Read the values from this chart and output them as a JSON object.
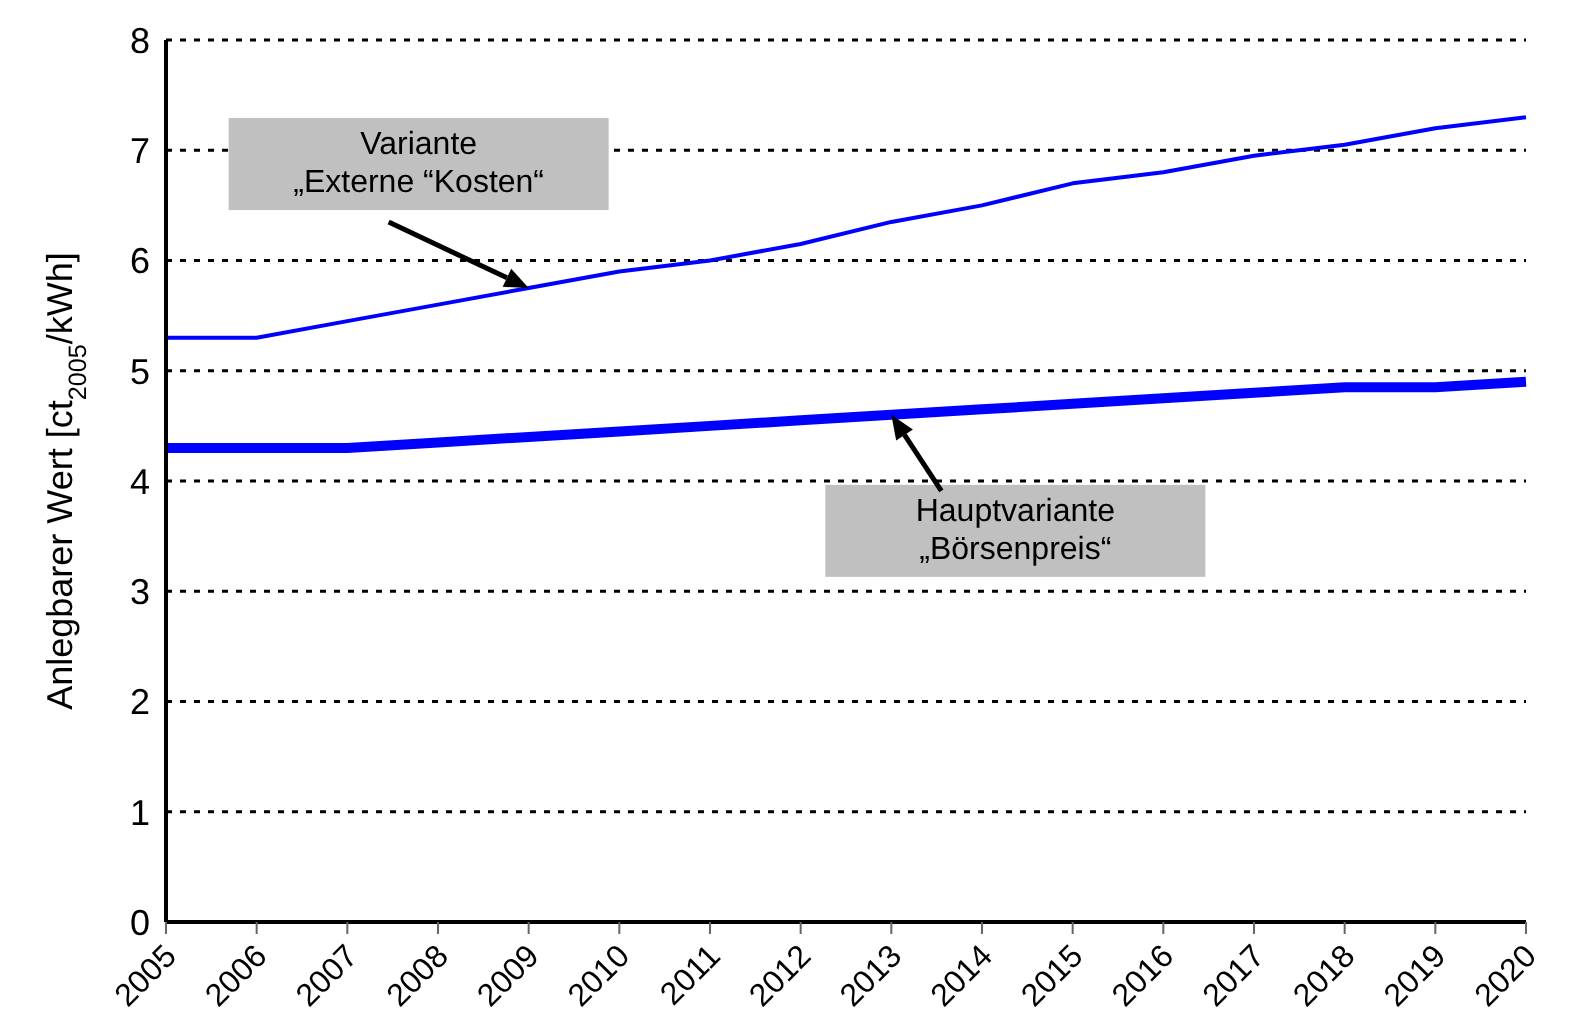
{
  "chart_data": {
    "type": "line",
    "ylabel": "Anlegbarer Wert [ct$_{2005}$/kWh]",
    "categories": [
      "2005",
      "2006",
      "2007",
      "2008",
      "2009",
      "2010",
      "2011",
      "2012",
      "2013",
      "2014",
      "2015",
      "2016",
      "2017",
      "2018",
      "2019",
      "2020"
    ],
    "series": [
      {
        "color": "#0000ff",
        "values": [
          5.3,
          5.3,
          5.45,
          5.6,
          5.75,
          5.9,
          6.0,
          6.15,
          6.35,
          6.5,
          6.7,
          6.8,
          6.95,
          7.05,
          7.2,
          7.3
        ]
      },
      {
        "color": "#0000ff",
        "values": [
          4.3,
          4.3,
          4.3,
          4.35,
          4.4,
          4.45,
          4.5,
          4.55,
          4.6,
          4.65,
          4.7,
          4.75,
          4.8,
          4.85,
          4.85,
          4.9
        ]
      }
    ],
    "ylim": [
      0,
      8
    ],
    "yticks": [
      0,
      1,
      2,
      3,
      4,
      5,
      6,
      7,
      8
    ],
    "grid": "y",
    "marker": "none",
    "line_style": "solid",
    "annotations": [
      {
        "text": "Variante\n„Externe “Kosten“",
        "x": "2009",
        "y": 5.75
      },
      {
        "text": "Hauptvariante\n„Börsenpreis“",
        "x": "2013",
        "y": 4.6
      }
    ]
  }
}
